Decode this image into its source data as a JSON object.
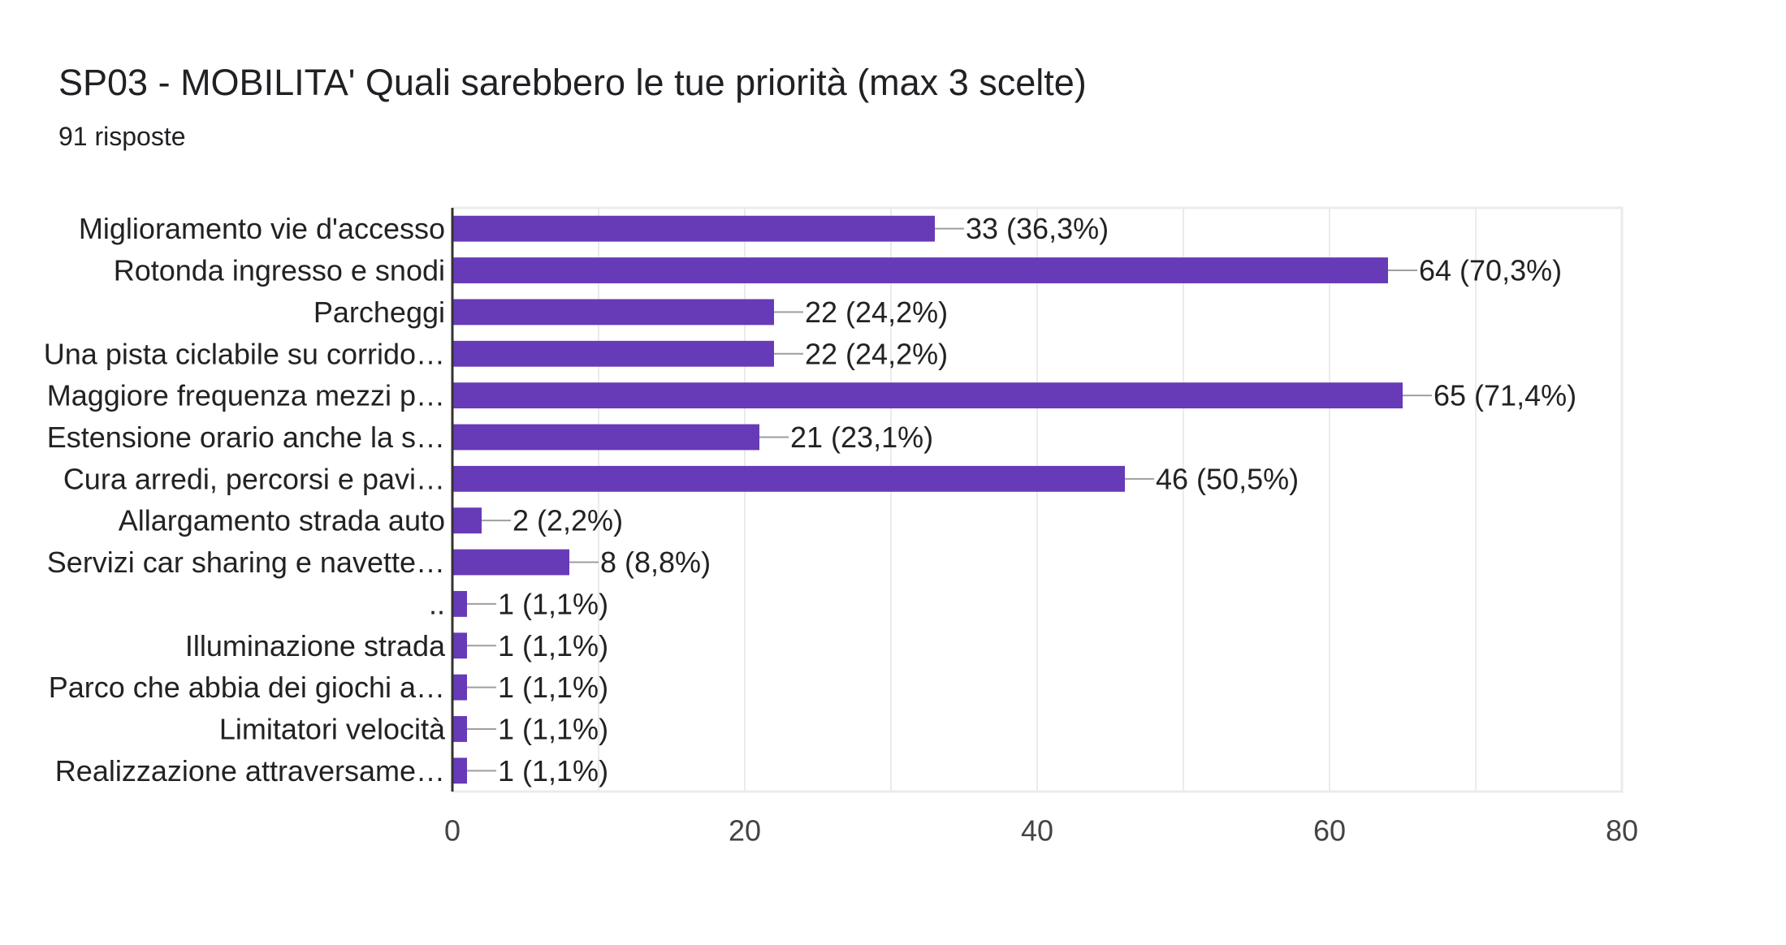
{
  "header": {
    "title": "SP03 - MOBILITA' Quali sarebbero le tue priorità (max 3 scelte)",
    "responses": "91 risposte"
  },
  "colors": {
    "bar": "#673ab7",
    "grid": "#ebebeb",
    "axis": "#333333",
    "leader": "#9e9e9e"
  },
  "chart_data": {
    "type": "bar",
    "orientation": "horizontal",
    "title": "SP03 - MOBILITA' Quali sarebbero le tue priorità (max 3 scelte)",
    "subtitle": "91 risposte",
    "categories": [
      "Miglioramento vie d'accesso",
      "Rotonda ingresso e snodi",
      "Parcheggi",
      "Una pista ciclabile su corrido…",
      "Maggiore frequenza mezzi p…",
      "Estensione orario anche la s…",
      "Cura arredi, percorsi e pavi…",
      "Allargamento strada auto",
      "Servizi car sharing e navette…",
      "..",
      "Illuminazione strada",
      "Parco che abbia dei giochi a…",
      "Limitatori velocità",
      "Realizzazione attraversame…"
    ],
    "values": [
      33,
      64,
      22,
      22,
      65,
      21,
      46,
      2,
      8,
      1,
      1,
      1,
      1,
      1
    ],
    "data_labels": [
      "33 (36,3%)",
      "64 (70,3%)",
      "22 (24,2%)",
      "22 (24,2%)",
      "65 (71,4%)",
      "21 (23,1%)",
      "46 (50,5%)",
      "2 (2,2%)",
      "8 (8,8%)",
      "1 (1,1%)",
      "1 (1,1%)",
      "1 (1,1%)",
      "1 (1,1%)",
      "1 (1,1%)"
    ],
    "xlim": [
      0,
      80
    ],
    "xticks": [
      0,
      20,
      40,
      60,
      80
    ],
    "xlabel": "",
    "ylabel": "",
    "grid": true,
    "legend": "none"
  }
}
